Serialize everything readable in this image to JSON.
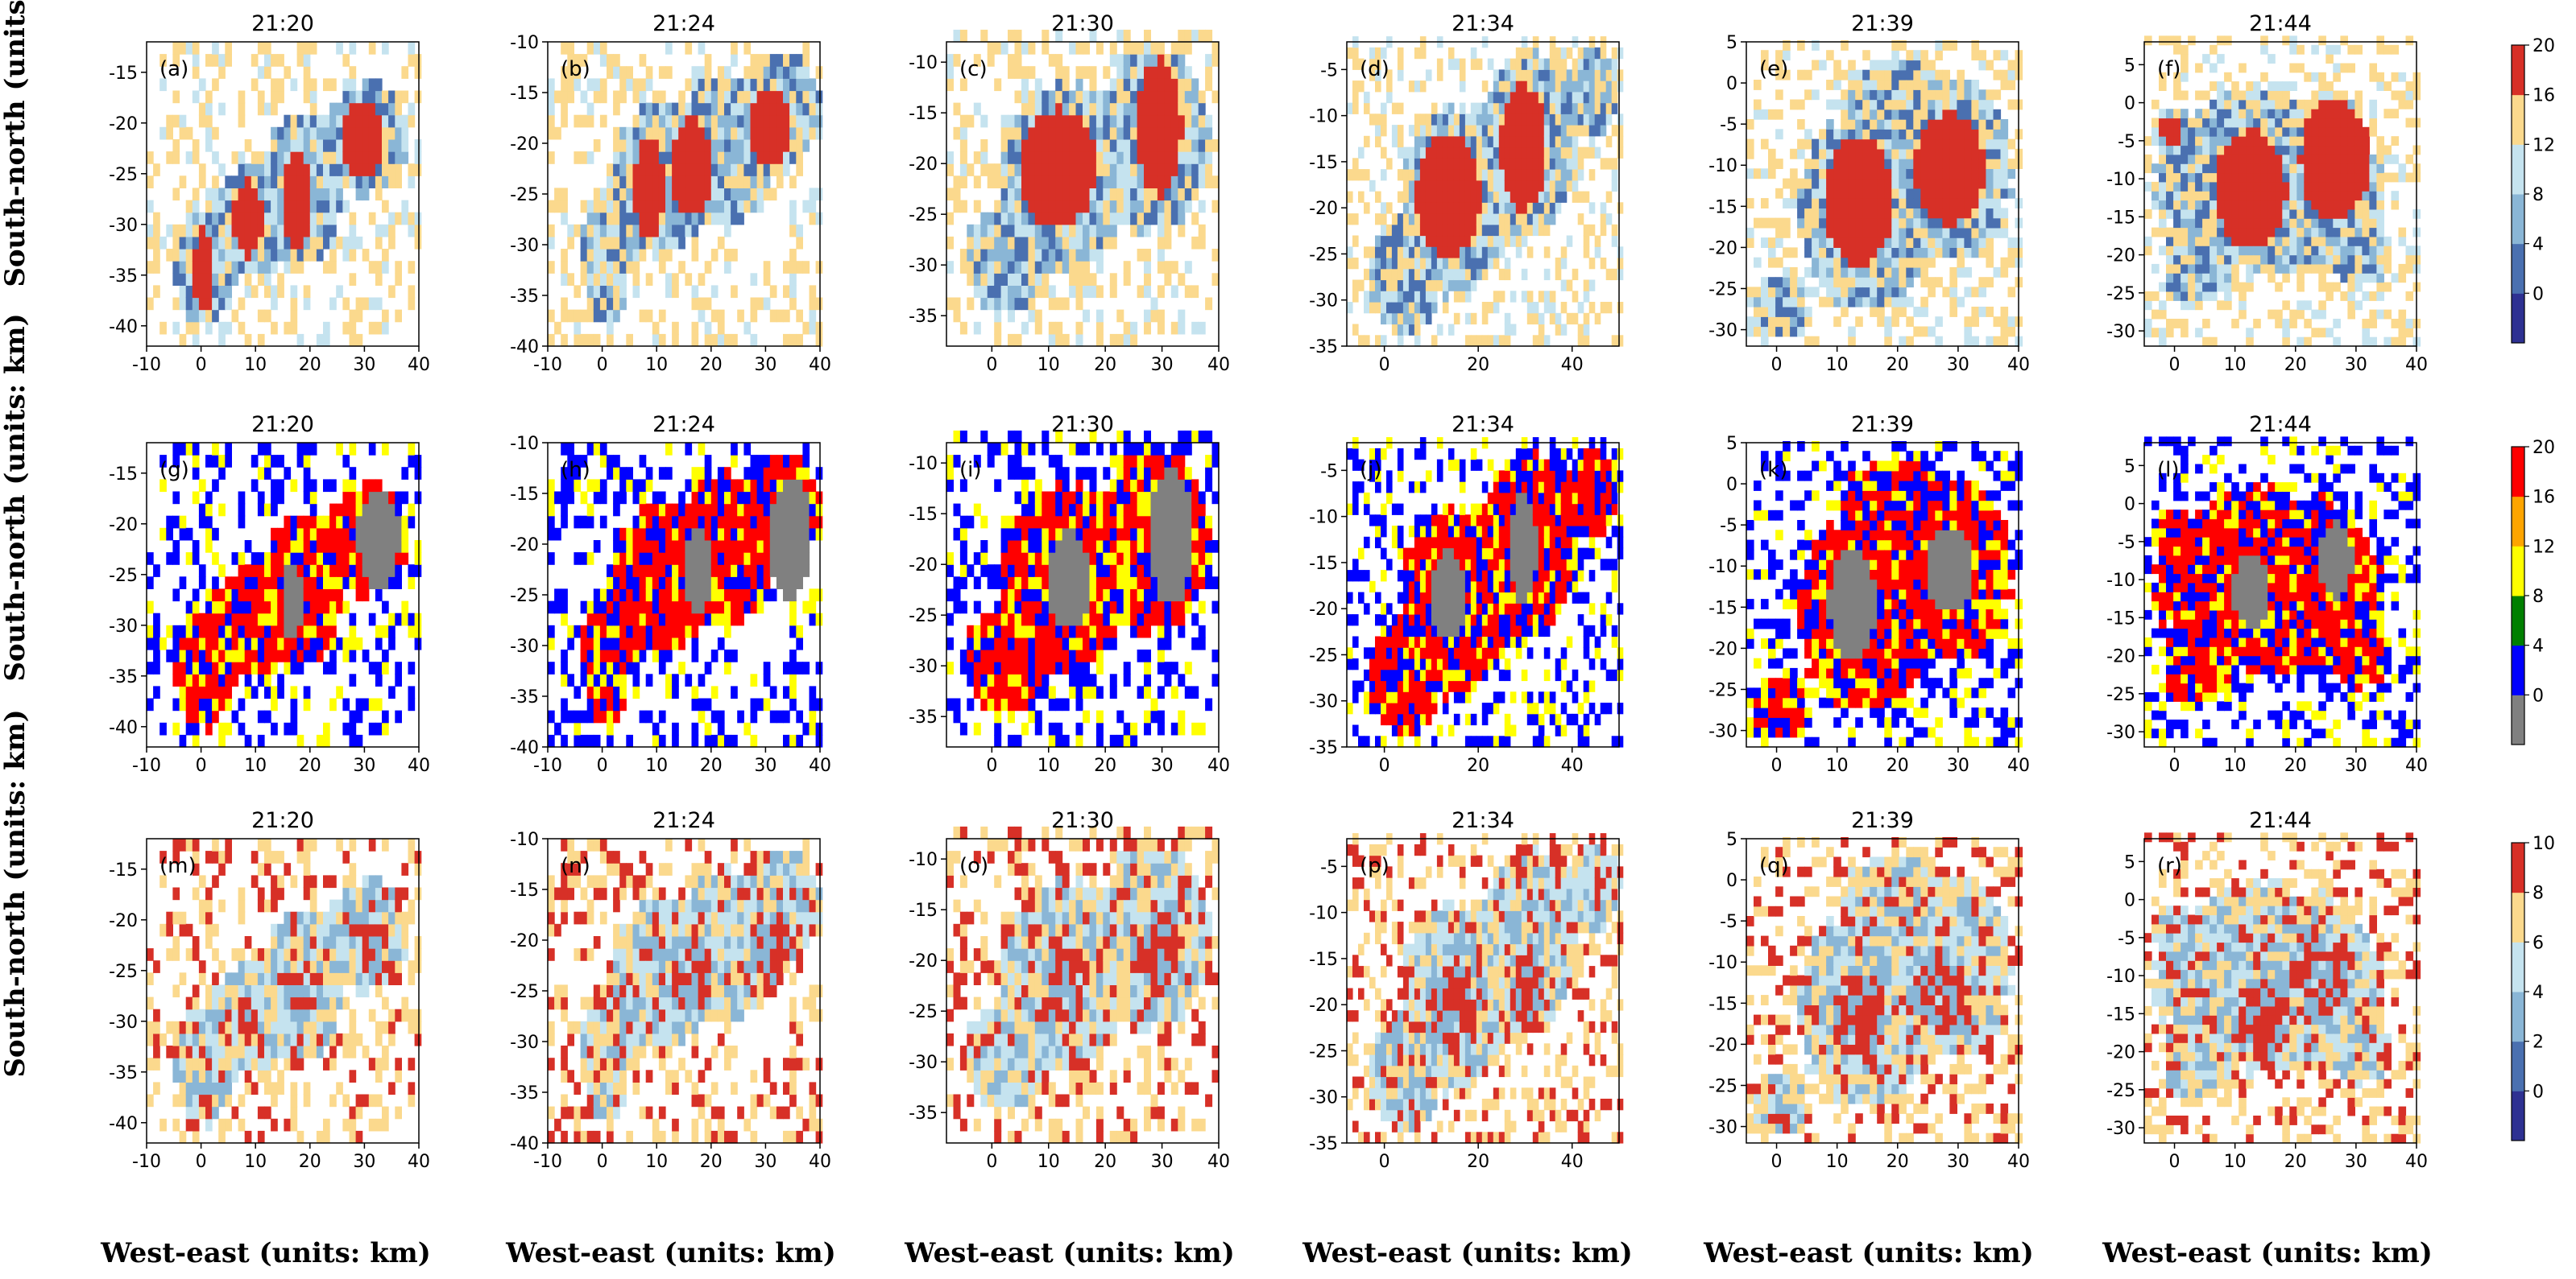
{
  "figure": {
    "x_axis_label": "West-east (units: km)",
    "y_axis_label": "South-north (units: km)"
  },
  "colorbars": [
    {
      "ticks": [
        "20",
        "16",
        "12",
        "8",
        "4",
        "0"
      ],
      "colors": [
        "#2e3192",
        "#4a70b0",
        "#8ab6d6",
        "#c5e3ef",
        "#fbd98d",
        "#d73027"
      ]
    },
    {
      "ticks": [
        "20",
        "16",
        "12",
        "8",
        "4",
        "0"
      ],
      "colors": [
        "#808080",
        "#0000ff",
        "#007f00",
        "#ffff00",
        "#ffa500",
        "#ff0000"
      ]
    },
    {
      "ticks": [
        "10",
        "8",
        "6",
        "4",
        "2",
        "0"
      ],
      "colors": [
        "#2e3192",
        "#4a70b0",
        "#8ab6d6",
        "#c5e3ef",
        "#fbd98d",
        "#d73027"
      ]
    }
  ],
  "chart_data": [
    {
      "type": "heatmap",
      "panel": "(a)",
      "title": "21:20",
      "xlim": [
        -10,
        40
      ],
      "ylim": [
        -42,
        -12
      ],
      "xticks": [
        "-10",
        "0",
        "10",
        "20",
        "30",
        "40"
      ],
      "yticks": [
        "-40",
        "-35",
        "-30",
        "-25",
        "-20",
        "-15"
      ],
      "field": "reflectivity",
      "cores": [
        [
          0,
          -35,
          2,
          4
        ],
        [
          8,
          -30,
          3,
          4
        ],
        [
          17,
          -28,
          3,
          5
        ],
        [
          29,
          -22,
          4,
          4
        ]
      ],
      "envelope": [
        [
          0,
          -35,
          6,
          6
        ],
        [
          9,
          -30,
          8,
          6
        ],
        [
          18,
          -27,
          8,
          8
        ],
        [
          30,
          -22,
          8,
          6
        ]
      ]
    },
    {
      "type": "heatmap",
      "panel": "(b)",
      "title": "21:24",
      "xlim": [
        -10,
        40
      ],
      "ylim": [
        -40,
        -10
      ],
      "xticks": [
        "-10",
        "0",
        "10",
        "20",
        "30",
        "40"
      ],
      "yticks": [
        "-40",
        "-35",
        "-30",
        "-25",
        "-20",
        "-15",
        "-10"
      ],
      "field": "reflectivity",
      "cores": [
        [
          8,
          -25,
          3,
          5
        ],
        [
          16,
          -23,
          4,
          5
        ],
        [
          30,
          -19,
          4,
          4
        ]
      ],
      "envelope": [
        [
          0,
          -32,
          5,
          7
        ],
        [
          10,
          -24,
          10,
          8
        ],
        [
          22,
          -21,
          10,
          8
        ],
        [
          32,
          -17,
          8,
          6
        ]
      ]
    },
    {
      "type": "heatmap",
      "panel": "(c)",
      "title": "21:30",
      "xlim": [
        -8,
        40
      ],
      "ylim": [
        -38,
        -8
      ],
      "xticks": [
        "0",
        "10",
        "20",
        "30",
        "40"
      ],
      "yticks": [
        "-35",
        "-30",
        "-25",
        "-20",
        "-15",
        "-10"
      ],
      "field": "reflectivity",
      "cores": [
        [
          11,
          -21,
          7,
          6
        ],
        [
          29,
          -17,
          4,
          7
        ]
      ],
      "envelope": [
        [
          2,
          -30,
          8,
          6
        ],
        [
          12,
          -22,
          12,
          10
        ],
        [
          28,
          -18,
          10,
          10
        ]
      ]
    },
    {
      "type": "heatmap",
      "panel": "(d)",
      "title": "21:34",
      "xlim": [
        -8,
        50
      ],
      "ylim": [
        -35,
        -2
      ],
      "xticks": [
        "0",
        "20",
        "40"
      ],
      "yticks": [
        "-35",
        "-30",
        "-25",
        "-20",
        "-15",
        "-10",
        "-5"
      ],
      "field": "reflectivity",
      "cores": [
        [
          13,
          -19,
          7,
          7
        ],
        [
          29,
          -14,
          5,
          7
        ]
      ],
      "envelope": [
        [
          4,
          -28,
          8,
          7
        ],
        [
          14,
          -20,
          12,
          11
        ],
        [
          30,
          -14,
          11,
          11
        ],
        [
          44,
          -8,
          6,
          5
        ]
      ]
    },
    {
      "type": "heatmap",
      "panel": "(e)",
      "title": "21:39",
      "xlim": [
        -5,
        40
      ],
      "ylim": [
        -32,
        5
      ],
      "xticks": [
        "0",
        "10",
        "20",
        "30",
        "40"
      ],
      "yticks": [
        "-30",
        "-25",
        "-20",
        "-15",
        "-10",
        "-5",
        "0",
        "5"
      ],
      "field": "reflectivity",
      "cores": [
        [
          13,
          -15,
          6,
          8
        ],
        [
          28,
          -11,
          6,
          7
        ]
      ],
      "envelope": [
        [
          0,
          -28,
          5,
          4
        ],
        [
          14,
          -16,
          12,
          13
        ],
        [
          28,
          -11,
          11,
          12
        ],
        [
          20,
          -2,
          10,
          5
        ]
      ]
    },
    {
      "type": "heatmap",
      "panel": "(f)",
      "title": "21:44",
      "xlim": [
        -5,
        40
      ],
      "ylim": [
        -32,
        8
      ],
      "xticks": [
        "0",
        "10",
        "20",
        "30",
        "40"
      ],
      "yticks": [
        "-30",
        "-25",
        "-20",
        "-15",
        "-10",
        "-5",
        "0",
        "5"
      ],
      "field": "reflectivity",
      "cores": [
        [
          -1,
          -4,
          2,
          2
        ],
        [
          12,
          -12,
          6,
          8
        ],
        [
          26,
          -8,
          6,
          8
        ]
      ],
      "envelope": [
        [
          15,
          -11,
          20,
          13
        ],
        [
          -1,
          -4,
          4,
          3
        ],
        [
          3,
          -22,
          6,
          6
        ],
        [
          30,
          -20,
          6,
          5
        ]
      ]
    },
    {
      "type": "heatmap",
      "panel": "(g)",
      "title": "21:20",
      "xlim": [
        -10,
        40
      ],
      "ylim": [
        -42,
        -12
      ],
      "xticks": [
        "-10",
        "0",
        "10",
        "20",
        "30",
        "40"
      ],
      "yticks": [
        "-40",
        "-35",
        "-30",
        "-25",
        "-20",
        "-15"
      ],
      "field": "category",
      "cores": [
        [
          16,
          -28,
          2,
          4
        ],
        [
          32,
          -22,
          4,
          5
        ]
      ],
      "envelope": [
        [
          0,
          -35,
          6,
          6
        ],
        [
          9,
          -30,
          8,
          6
        ],
        [
          18,
          -27,
          8,
          8
        ],
        [
          30,
          -22,
          8,
          6
        ]
      ]
    },
    {
      "type": "heatmap",
      "panel": "(h)",
      "title": "21:24",
      "xlim": [
        -10,
        40
      ],
      "ylim": [
        -40,
        -10
      ],
      "xticks": [
        "-10",
        "0",
        "10",
        "20",
        "30",
        "40"
      ],
      "yticks": [
        "-40",
        "-35",
        "-30",
        "-25",
        "-20",
        "-15",
        "-10"
      ],
      "field": "category",
      "cores": [
        [
          17,
          -23,
          3,
          4
        ],
        [
          34,
          -20,
          4,
          6
        ]
      ],
      "envelope": [
        [
          0,
          -32,
          5,
          7
        ],
        [
          10,
          -24,
          10,
          8
        ],
        [
          22,
          -21,
          10,
          8
        ],
        [
          32,
          -17,
          8,
          6
        ]
      ]
    },
    {
      "type": "heatmap",
      "panel": "(i)",
      "title": "21:30",
      "xlim": [
        -8,
        40
      ],
      "ylim": [
        -38,
        -8
      ],
      "xticks": [
        "0",
        "10",
        "20",
        "30",
        "40"
      ],
      "yticks": [
        "-35",
        "-30",
        "-25",
        "-20",
        "-15",
        "-10"
      ],
      "field": "category",
      "cores": [
        [
          13,
          -22,
          4,
          5
        ],
        [
          31,
          -18,
          4,
          7
        ]
      ],
      "envelope": [
        [
          2,
          -30,
          8,
          6
        ],
        [
          12,
          -22,
          12,
          10
        ],
        [
          28,
          -18,
          10,
          10
        ]
      ]
    },
    {
      "type": "heatmap",
      "panel": "(j)",
      "title": "21:34",
      "xlim": [
        -8,
        50
      ],
      "ylim": [
        -35,
        -2
      ],
      "xticks": [
        "0",
        "20",
        "40"
      ],
      "yticks": [
        "-35",
        "-30",
        "-25",
        "-20",
        "-15",
        "-10",
        "-5"
      ],
      "field": "category",
      "cores": [
        [
          13,
          -19,
          4,
          5
        ],
        [
          29,
          -14,
          3,
          6
        ]
      ],
      "envelope": [
        [
          4,
          -28,
          8,
          7
        ],
        [
          14,
          -20,
          12,
          11
        ],
        [
          30,
          -14,
          11,
          11
        ],
        [
          44,
          -8,
          6,
          5
        ]
      ]
    },
    {
      "type": "heatmap",
      "panel": "(k)",
      "title": "21:39",
      "xlim": [
        -5,
        40
      ],
      "ylim": [
        -32,
        5
      ],
      "xticks": [
        "0",
        "10",
        "20",
        "30",
        "40"
      ],
      "yticks": [
        "-30",
        "-25",
        "-20",
        "-15",
        "-10",
        "-5",
        "0",
        "5"
      ],
      "field": "category",
      "cores": [
        [
          12,
          -15,
          4,
          7
        ],
        [
          28,
          -11,
          4,
          5
        ]
      ],
      "envelope": [
        [
          0,
          -28,
          5,
          4
        ],
        [
          14,
          -16,
          12,
          13
        ],
        [
          28,
          -11,
          11,
          12
        ],
        [
          20,
          -2,
          10,
          5
        ]
      ]
    },
    {
      "type": "heatmap",
      "panel": "(l)",
      "title": "21:44",
      "xlim": [
        -5,
        40
      ],
      "ylim": [
        -32,
        8
      ],
      "xticks": [
        "0",
        "10",
        "20",
        "30",
        "40"
      ],
      "yticks": [
        "-30",
        "-25",
        "-20",
        "-15",
        "-10",
        "-5",
        "0",
        "5"
      ],
      "field": "category",
      "cores": [
        [
          12,
          -12,
          3,
          5
        ],
        [
          26,
          -8,
          3,
          5
        ]
      ],
      "envelope": [
        [
          15,
          -11,
          20,
          13
        ],
        [
          -1,
          -4,
          4,
          3
        ],
        [
          3,
          -22,
          6,
          6
        ],
        [
          30,
          -20,
          6,
          5
        ]
      ]
    },
    {
      "type": "heatmap",
      "panel": "(m)",
      "title": "21:20",
      "xlim": [
        -10,
        40
      ],
      "ylim": [
        -42,
        -12
      ],
      "xticks": [
        "-10",
        "0",
        "10",
        "20",
        "30",
        "40"
      ],
      "yticks": [
        "-40",
        "-35",
        "-30",
        "-25",
        "-20",
        "-15"
      ],
      "field": "difference",
      "cores": [
        [
          8,
          -30,
          2,
          3
        ],
        [
          18,
          -28,
          3,
          3
        ],
        [
          30,
          -23,
          3,
          4
        ]
      ],
      "envelope": [
        [
          0,
          -35,
          6,
          6
        ],
        [
          9,
          -30,
          8,
          6
        ],
        [
          18,
          -27,
          8,
          8
        ],
        [
          30,
          -22,
          8,
          6
        ]
      ]
    },
    {
      "type": "heatmap",
      "panel": "(n)",
      "title": "21:24",
      "xlim": [
        -10,
        40
      ],
      "ylim": [
        -40,
        -10
      ],
      "xticks": [
        "-10",
        "0",
        "10",
        "20",
        "30",
        "40"
      ],
      "yticks": [
        "-40",
        "-35",
        "-30",
        "-25",
        "-20",
        "-15",
        "-10"
      ],
      "field": "difference",
      "cores": [
        [
          16,
          -24,
          4,
          4
        ],
        [
          30,
          -21,
          4,
          4
        ]
      ],
      "envelope": [
        [
          0,
          -32,
          5,
          7
        ],
        [
          10,
          -24,
          10,
          8
        ],
        [
          22,
          -21,
          10,
          8
        ],
        [
          32,
          -17,
          8,
          6
        ]
      ]
    },
    {
      "type": "heatmap",
      "panel": "(o)",
      "title": "21:30",
      "xlim": [
        -8,
        40
      ],
      "ylim": [
        -38,
        -8
      ],
      "xticks": [
        "0",
        "10",
        "20",
        "30",
        "40"
      ],
      "yticks": [
        "-35",
        "-30",
        "-25",
        "-20",
        "-15",
        "-10"
      ],
      "field": "difference",
      "cores": [
        [
          13,
          -23,
          4,
          4
        ],
        [
          29,
          -20,
          4,
          5
        ]
      ],
      "envelope": [
        [
          2,
          -30,
          8,
          6
        ],
        [
          12,
          -22,
          12,
          10
        ],
        [
          28,
          -18,
          10,
          10
        ]
      ]
    },
    {
      "type": "heatmap",
      "panel": "(p)",
      "title": "21:34",
      "xlim": [
        -8,
        50
      ],
      "ylim": [
        -35,
        -2
      ],
      "xticks": [
        "0",
        "20",
        "40"
      ],
      "yticks": [
        "-35",
        "-30",
        "-25",
        "-20",
        "-15",
        "-10",
        "-5"
      ],
      "field": "difference",
      "cores": [
        [
          14,
          -21,
          5,
          5
        ],
        [
          30,
          -19,
          4,
          5
        ]
      ],
      "envelope": [
        [
          4,
          -28,
          8,
          7
        ],
        [
          14,
          -20,
          12,
          11
        ],
        [
          30,
          -14,
          11,
          11
        ],
        [
          44,
          -8,
          6,
          5
        ]
      ]
    },
    {
      "type": "heatmap",
      "panel": "(q)",
      "title": "21:39",
      "xlim": [
        -5,
        40
      ],
      "ylim": [
        -32,
        5
      ],
      "xticks": [
        "0",
        "10",
        "20",
        "30",
        "40"
      ],
      "yticks": [
        "-30",
        "-25",
        "-20",
        "-15",
        "-10",
        "-5",
        "0",
        "5"
      ],
      "field": "difference",
      "cores": [
        [
          13,
          -17,
          5,
          6
        ],
        [
          26,
          -14,
          5,
          6
        ]
      ],
      "envelope": [
        [
          0,
          -28,
          5,
          4
        ],
        [
          14,
          -16,
          12,
          13
        ],
        [
          28,
          -11,
          11,
          12
        ],
        [
          20,
          -2,
          10,
          5
        ]
      ]
    },
    {
      "type": "heatmap",
      "panel": "(r)",
      "title": "21:44",
      "xlim": [
        -5,
        40
      ],
      "ylim": [
        -32,
        8
      ],
      "xticks": [
        "0",
        "10",
        "20",
        "30",
        "40"
      ],
      "yticks": [
        "-30",
        "-25",
        "-20",
        "-15",
        "-10",
        "-5",
        "0",
        "5"
      ],
      "field": "difference",
      "cores": [
        [
          14,
          -16,
          5,
          6
        ],
        [
          24,
          -10,
          6,
          6
        ]
      ],
      "envelope": [
        [
          15,
          -11,
          20,
          13
        ],
        [
          -1,
          -4,
          4,
          3
        ],
        [
          3,
          -22,
          6,
          6
        ],
        [
          30,
          -20,
          6,
          5
        ]
      ]
    }
  ]
}
